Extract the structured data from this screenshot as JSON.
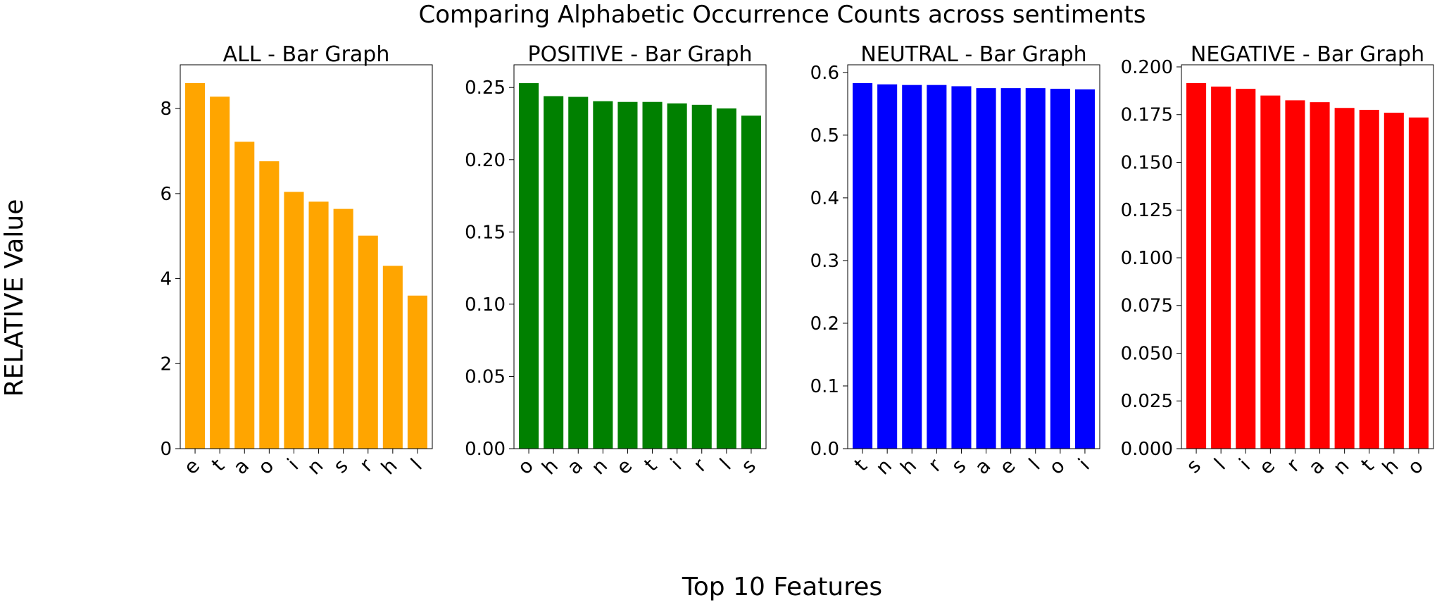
{
  "suptitle": "Comparing Alphabetic Occurrence Counts across sentiments",
  "supylabel": "RELATIVE Value",
  "supxlabel": "Top 10 Features",
  "chart_data": [
    {
      "type": "bar",
      "title": "ALL - Bar Graph",
      "color": "#FFA500",
      "categories": [
        "e",
        "t",
        "a",
        "o",
        "i",
        "n",
        "s",
        "r",
        "h",
        "l"
      ],
      "values": [
        8.6,
        8.28,
        7.22,
        6.76,
        6.04,
        5.81,
        5.64,
        5.01,
        4.3,
        3.6
      ],
      "ylim": [
        0,
        9.03
      ],
      "yticks": [
        0,
        2,
        4,
        6,
        8
      ],
      "ytick_labels": [
        "0",
        "2",
        "4",
        "6",
        "8"
      ]
    },
    {
      "type": "bar",
      "title": "POSITIVE - Bar Graph",
      "color": "#008000",
      "categories": [
        "o",
        "h",
        "a",
        "n",
        "e",
        "t",
        "i",
        "r",
        "l",
        "s"
      ],
      "values": [
        0.253,
        0.244,
        0.2435,
        0.2405,
        0.24,
        0.24,
        0.239,
        0.238,
        0.2355,
        0.2305
      ],
      "ylim": [
        0,
        0.2657
      ],
      "yticks": [
        0,
        0.05,
        0.1,
        0.15,
        0.2,
        0.25
      ],
      "ytick_labels": [
        "0.00",
        "0.05",
        "0.10",
        "0.15",
        "0.20",
        "0.25"
      ]
    },
    {
      "type": "bar",
      "title": "NEUTRAL - Bar Graph",
      "color": "#0000FF",
      "categories": [
        "t",
        "n",
        "h",
        "r",
        "s",
        "a",
        "e",
        "l",
        "o",
        "i"
      ],
      "values": [
        0.583,
        0.581,
        0.58,
        0.58,
        0.578,
        0.575,
        0.575,
        0.575,
        0.574,
        0.573
      ],
      "ylim": [
        0,
        0.6122
      ],
      "yticks": [
        0,
        0.1,
        0.2,
        0.3,
        0.4,
        0.5,
        0.6
      ],
      "ytick_labels": [
        "0.0",
        "0.1",
        "0.2",
        "0.3",
        "0.4",
        "0.5",
        "0.6"
      ]
    },
    {
      "type": "bar",
      "title": "NEGATIVE - Bar Graph",
      "color": "#FF0000",
      "categories": [
        "s",
        "l",
        "i",
        "e",
        "r",
        "a",
        "n",
        "t",
        "h",
        "o"
      ],
      "values": [
        0.1915,
        0.1897,
        0.1885,
        0.185,
        0.1825,
        0.1815,
        0.1785,
        0.1775,
        0.176,
        0.1735
      ],
      "ylim": [
        0,
        0.2011
      ],
      "yticks": [
        0,
        0.025,
        0.05,
        0.075,
        0.1,
        0.125,
        0.15,
        0.175,
        0.2
      ],
      "ytick_labels": [
        "0.000",
        "0.025",
        "0.050",
        "0.075",
        "0.100",
        "0.125",
        "0.150",
        "0.175",
        "0.200"
      ]
    }
  ]
}
